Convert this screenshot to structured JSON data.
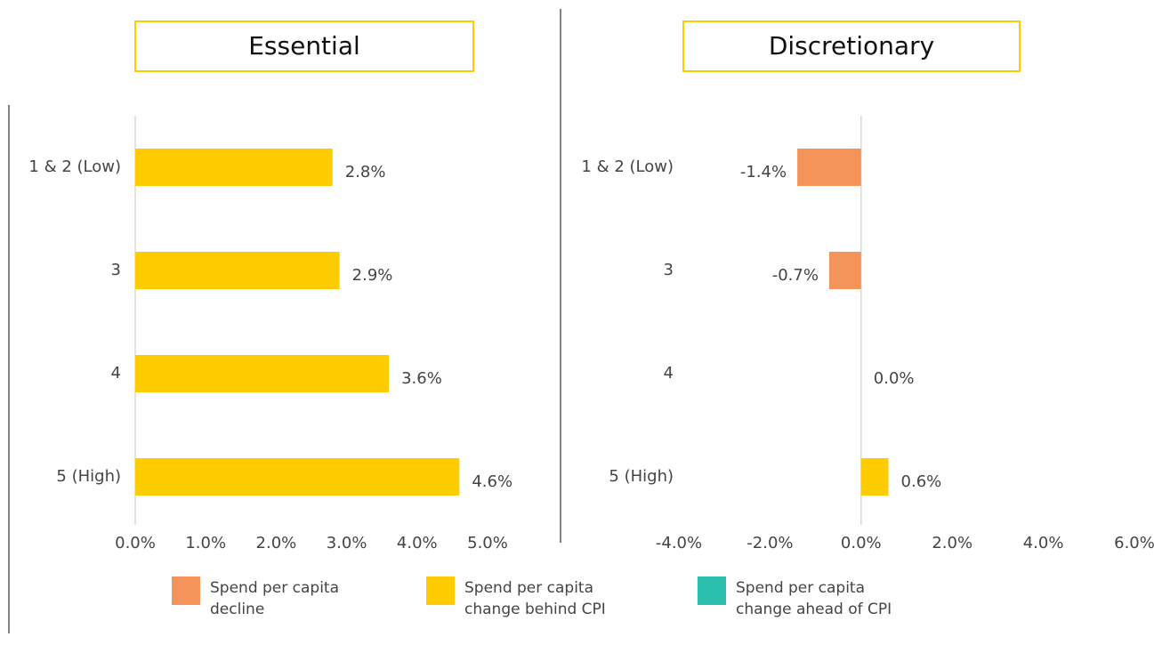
{
  "chart_data": [
    {
      "type": "hbar",
      "title": "Essential",
      "categories": [
        "1 & 2 (Low)",
        "3",
        "4",
        "5 (High)"
      ],
      "values": [
        2.8,
        2.9,
        3.6,
        4.6
      ],
      "value_labels": [
        "2.8%",
        "2.9%",
        "3.6%",
        "4.6%"
      ],
      "colors": [
        "#ffcc00",
        "#ffcc00",
        "#ffcc00",
        "#ffcc00"
      ],
      "xlim": [
        0,
        5
      ],
      "xticks": [
        {
          "value": 0,
          "label": "0.0%"
        },
        {
          "value": 1,
          "label": "1.0%"
        },
        {
          "value": 2,
          "label": "2.0%"
        },
        {
          "value": 3,
          "label": "3.0%"
        },
        {
          "value": 4,
          "label": "4.0%"
        },
        {
          "value": 5,
          "label": "5.0%"
        }
      ]
    },
    {
      "type": "hbar",
      "title": "Discretionary",
      "categories": [
        "1 & 2 (Low)",
        "3",
        "4",
        "5 (High)"
      ],
      "values": [
        -1.4,
        -0.7,
        0.0,
        0.6
      ],
      "value_labels": [
        "-1.4%",
        "-0.7%",
        "0.0%",
        "0.6%"
      ],
      "colors": [
        "#f4935a",
        "#f4935a",
        "#ffcc00",
        "#ffcc00"
      ],
      "xlim": [
        -4,
        6
      ],
      "xticks": [
        {
          "value": -4,
          "label": "-4.0%"
        },
        {
          "value": -2,
          "label": "-2.0%"
        },
        {
          "value": 0,
          "label": "0.0%"
        },
        {
          "value": 2,
          "label": "2.0%"
        },
        {
          "value": 4,
          "label": "4.0%"
        },
        {
          "value": 6,
          "label": "6.0%"
        }
      ]
    }
  ],
  "legend": [
    {
      "label": [
        "Spend per capita",
        "decline"
      ],
      "color": "#f4935a"
    },
    {
      "label": [
        "Spend per capita",
        "change behind CPI"
      ],
      "color": "#ffcc00"
    },
    {
      "label": [
        "Spend per capita",
        "change ahead of CPI"
      ],
      "color": "#2bbfad"
    }
  ]
}
